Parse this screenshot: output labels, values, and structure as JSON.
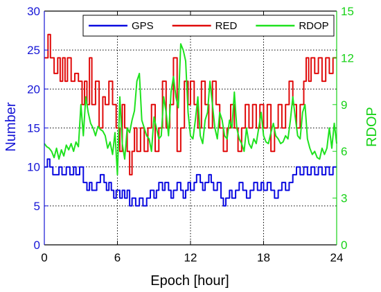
{
  "chart_data": {
    "type": "line",
    "xlabel": "Epoch [hour]",
    "ylabel_left": "Number",
    "ylabel_right": "RDOP",
    "xlim": [
      0,
      24
    ],
    "ylim_left": [
      0,
      30
    ],
    "ylim_right": [
      0,
      15
    ],
    "xticks": [
      "0",
      "6",
      "12",
      "18",
      "24"
    ],
    "yticks_left": [
      "0",
      "5",
      "10",
      "15",
      "20",
      "25",
      "30"
    ],
    "yticks_right": [
      "0",
      "3",
      "6",
      "9",
      "12",
      "15"
    ],
    "grid": true,
    "legend_position": "top",
    "left_axis_color": "#1515d6",
    "right_axis_color": "#17d217",
    "series": [
      {
        "name": "GPS",
        "axis": "left",
        "color": "#0a0ae0",
        "step": true,
        "x": [
          0,
          0.25,
          0.45,
          0.7,
          1.2,
          1.45,
          1.8,
          2.1,
          2.4,
          2.6,
          2.9,
          3.2,
          3.5,
          3.7,
          3.9,
          4.3,
          4.6,
          4.9,
          5.1,
          5.3,
          5.5,
          5.7,
          5.9,
          6.2,
          6.4,
          6.6,
          6.8,
          7.0,
          7.2,
          7.5,
          7.8,
          8.1,
          8.4,
          8.7,
          9.0,
          9.2,
          9.4,
          9.7,
          9.9,
          10.2,
          10.4,
          10.6,
          10.9,
          11.2,
          11.4,
          11.6,
          11.8,
          12.0,
          12.3,
          12.5,
          12.8,
          13.0,
          13.2,
          13.5,
          13.7,
          13.9,
          14.2,
          14.5,
          14.7,
          14.9,
          15.2,
          15.4,
          15.7,
          16.0,
          16.3,
          16.6,
          16.9,
          17.2,
          17.5,
          17.8,
          18.0,
          18.3,
          18.6,
          18.9,
          19.2,
          19.5,
          19.8,
          20.1,
          20.4,
          20.7,
          21.0,
          21.3,
          21.6,
          21.9,
          22.2,
          22.5,
          22.8,
          23.1,
          23.4,
          23.7,
          24
        ],
        "values": [
          10,
          11,
          10,
          9,
          10,
          9,
          10,
          9,
          10,
          9,
          10,
          8,
          7,
          8,
          7,
          8,
          9,
          8,
          7,
          8,
          7,
          6,
          7,
          6,
          7,
          6,
          7,
          5,
          6,
          5,
          6,
          5,
          6,
          7,
          6,
          7,
          8,
          7,
          8,
          7,
          6,
          7,
          8,
          7,
          6,
          7,
          8,
          7,
          8,
          9,
          8,
          7,
          8,
          9,
          8,
          7,
          8,
          6,
          5,
          6,
          7,
          6,
          7,
          8,
          7,
          6,
          7,
          8,
          7,
          8,
          7,
          8,
          7,
          6,
          7,
          8,
          7,
          8,
          9,
          10,
          9,
          10,
          9,
          10,
          9,
          10,
          9,
          10,
          9,
          10,
          10
        ]
      },
      {
        "name": "RED",
        "axis": "left",
        "color": "#e00a0a",
        "step": true,
        "x": [
          0,
          0.3,
          0.5,
          0.8,
          1.1,
          1.3,
          1.5,
          1.7,
          1.9,
          2.2,
          2.5,
          2.8,
          3.1,
          3.3,
          3.5,
          3.7,
          3.9,
          4.2,
          4.5,
          4.8,
          5.0,
          5.3,
          5.6,
          5.9,
          6.2,
          6.4,
          6.6,
          6.8,
          7.0,
          7.2,
          7.4,
          7.6,
          7.9,
          8.2,
          8.5,
          8.8,
          9.1,
          9.4,
          9.7,
          10.0,
          10.3,
          10.6,
          10.9,
          11.2,
          11.5,
          11.8,
          12.0,
          12.3,
          12.6,
          12.9,
          13.2,
          13.5,
          13.8,
          14.1,
          14.4,
          14.7,
          15.0,
          15.3,
          15.6,
          15.9,
          16.2,
          16.5,
          16.8,
          17.1,
          17.4,
          17.7,
          18.0,
          18.3,
          18.6,
          18.9,
          19.2,
          19.5,
          19.8,
          20.1,
          20.4,
          20.7,
          21.0,
          21.3,
          21.5,
          21.7,
          21.9,
          22.2,
          22.5,
          22.8,
          23.1,
          23.4,
          23.7,
          24
        ],
        "values": [
          24,
          27,
          24,
          22,
          24,
          21,
          24,
          21,
          24,
          21,
          22,
          21,
          18,
          21,
          18,
          24,
          18,
          21,
          15,
          19,
          18,
          21,
          18,
          15,
          12,
          18,
          15,
          12,
          9,
          12,
          15,
          12,
          15,
          12,
          15,
          18,
          12,
          15,
          21,
          15,
          18,
          24,
          12,
          15,
          21,
          18,
          21,
          18,
          15,
          21,
          18,
          15,
          21,
          18,
          15,
          12,
          15,
          18,
          15,
          12,
          15,
          18,
          15,
          18,
          15,
          18,
          15,
          18,
          12,
          15,
          18,
          15,
          18,
          21,
          18,
          15,
          18,
          21,
          24,
          21,
          24,
          22,
          24,
          21,
          24,
          22,
          24,
          24
        ]
      },
      {
        "name": "RDOP",
        "axis": "right",
        "color": "#1ee21e",
        "step": false,
        "x": [
          0,
          0.2,
          0.4,
          0.6,
          0.8,
          1.0,
          1.2,
          1.4,
          1.6,
          1.8,
          2.0,
          2.2,
          2.4,
          2.6,
          2.8,
          3.0,
          3.2,
          3.4,
          3.6,
          3.8,
          4.0,
          4.2,
          4.4,
          4.6,
          4.8,
          5.0,
          5.2,
          5.4,
          5.6,
          5.8,
          6.0,
          6.2,
          6.4,
          6.6,
          6.8,
          7.0,
          7.2,
          7.4,
          7.6,
          7.8,
          8.0,
          8.2,
          8.4,
          8.6,
          8.8,
          9.0,
          9.2,
          9.4,
          9.6,
          9.8,
          10.0,
          10.2,
          10.4,
          10.6,
          10.8,
          11.0,
          11.2,
          11.4,
          11.6,
          11.8,
          12.0,
          12.2,
          12.4,
          12.6,
          12.8,
          13.0,
          13.2,
          13.4,
          13.6,
          13.8,
          14.0,
          14.2,
          14.4,
          14.6,
          14.8,
          15.0,
          15.2,
          15.4,
          15.6,
          15.8,
          16.0,
          16.2,
          16.4,
          16.6,
          16.8,
          17.0,
          17.2,
          17.4,
          17.6,
          17.8,
          18.0,
          18.2,
          18.4,
          18.6,
          18.8,
          19.0,
          19.2,
          19.4,
          19.6,
          19.8,
          20.0,
          20.2,
          20.4,
          20.6,
          20.8,
          21.0,
          21.2,
          21.4,
          21.6,
          21.8,
          22.0,
          22.2,
          22.4,
          22.6,
          22.8,
          23.0,
          23.2,
          23.4,
          23.6,
          23.8,
          24.0
        ],
        "values": [
          6.5,
          6.3,
          6.2,
          6.0,
          5.6,
          6.2,
          5.5,
          6.1,
          5.7,
          6.4,
          6.1,
          6.5,
          6.0,
          6.6,
          6.3,
          9.0,
          7.0,
          9.5,
          8.5,
          7.8,
          7.5,
          7.0,
          7.6,
          7.4,
          7.3,
          7.0,
          6.2,
          6.6,
          5.8,
          7.2,
          4.5,
          9.5,
          6.5,
          5.5,
          7.5,
          7.2,
          8.0,
          8.6,
          10.5,
          11.0,
          8.0,
          7.5,
          7.0,
          6.8,
          6.0,
          8.2,
          7.5,
          6.8,
          7.0,
          9.5,
          8.5,
          7.0,
          9.8,
          10.8,
          9.5,
          8.8,
          12.9,
          12.5,
          11.8,
          8.5,
          7.0,
          6.8,
          8.0,
          9.5,
          7.0,
          6.5,
          8.0,
          8.5,
          10.5,
          9.0,
          7.5,
          6.8,
          8.5,
          8.0,
          7.0,
          6.8,
          8.0,
          7.5,
          9.8,
          7.5,
          6.8,
          6.5,
          6.0,
          7.5,
          6.5,
          6.2,
          6.8,
          6.5,
          7.5,
          8.5,
          7.0,
          6.6,
          6.5,
          7.2,
          7.8,
          7.0,
          6.8,
          6.5,
          6.6,
          7.0,
          6.8,
          8.0,
          9.5,
          8.2,
          7.0,
          6.8,
          8.5,
          9.0,
          6.8,
          6.2,
          5.8,
          6.0,
          5.6,
          5.5,
          6.2,
          5.8,
          6.2,
          7.5,
          6.2,
          7.8,
          6.5
        ]
      }
    ]
  }
}
